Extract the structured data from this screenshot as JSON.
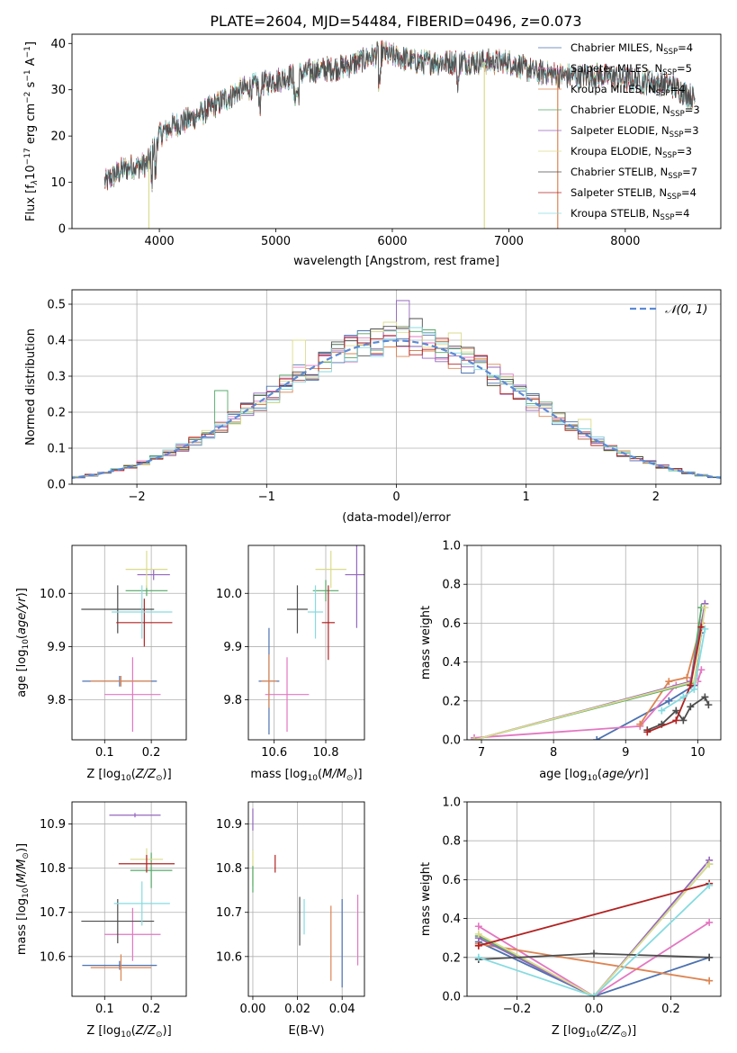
{
  "colors": [
    "#4c72b0",
    "#e377c2",
    "#dd8452",
    "#55a868",
    "#9467bd",
    "#dbdb8d",
    "#4d4d4d",
    "#b22222",
    "#86dbe0",
    "#a0a0a0"
  ],
  "chart_data": [
    {
      "id": "spectrum",
      "type": "line",
      "title": "PLATE=2604, MJD=54484, FIBERID=0496, z=0.073",
      "xlabel": "wavelength [Angstrom, rest frame]",
      "ylabel": "Flux [f",
      "ylabel_parts": [
        "Flux [f",
        "λ",
        "10",
        "−17",
        " erg cm",
        "−2",
        " s",
        "−1",
        " A",
        "−1",
        "]"
      ],
      "xlim": [
        3250,
        8820
      ],
      "ylim": [
        0,
        42
      ],
      "xticks": [
        4000,
        5000,
        6000,
        7000,
        8000
      ],
      "yticks": [
        0,
        10,
        20,
        30,
        40
      ],
      "continuum": {
        "x": [
          3530,
          3700,
          3900,
          3990,
          4100,
          4300,
          4500,
          4700,
          5000,
          5300,
          5600,
          5900,
          6200,
          6500,
          6800,
          7000,
          7200,
          7500,
          7800,
          8100,
          8400,
          8600
        ],
        "y": [
          10,
          13,
          14,
          20,
          22,
          24,
          27,
          30,
          32,
          34,
          35,
          38,
          36,
          36,
          36,
          36,
          34,
          33,
          33,
          32,
          31,
          28
        ]
      },
      "drops": [
        {
          "x": 3910,
          "color": 5
        },
        {
          "x": 6790,
          "color": 5
        },
        {
          "x": 7420,
          "color": 2
        }
      ],
      "legend": [
        {
          "pre": "Chabrier MILES, N",
          "sub": "SSP",
          "post": "=4"
        },
        {
          "pre": "Salpeter MILES, N",
          "sub": "SSP",
          "post": "=5"
        },
        {
          "pre": "Kroupa MILES, N",
          "sub": "SSP",
          "post": "=4"
        },
        {
          "pre": "Chabrier ELODIE, N",
          "sub": "SSP",
          "post": "=3"
        },
        {
          "pre": "Salpeter ELODIE, N",
          "sub": "SSP",
          "post": "=3"
        },
        {
          "pre": "Kroupa ELODIE, N",
          "sub": "SSP",
          "post": "=3"
        },
        {
          "pre": "Chabrier STELIB, N",
          "sub": "SSP",
          "post": "=7"
        },
        {
          "pre": "Salpeter STELIB, N",
          "sub": "SSP",
          "post": "=4"
        },
        {
          "pre": "Kroupa STELIB, N",
          "sub": "SSP",
          "post": "=4"
        }
      ]
    },
    {
      "id": "residuals",
      "type": "histogram",
      "xlabel": "(data-model)/error",
      "ylabel": "Normed distribution",
      "xlim": [
        -2.5,
        2.5
      ],
      "ylim": [
        0,
        0.54
      ],
      "xticks": [
        -2,
        -1,
        0,
        1,
        2
      ],
      "yticks": [
        0.0,
        0.1,
        0.2,
        0.3,
        0.4,
        0.5
      ],
      "bin_width": 0.1,
      "legend": "𝒩(0, 1)",
      "spikes": [
        {
          "x": 0.1,
          "y": 0.51,
          "color": 4
        },
        {
          "x": 0.2,
          "y": 0.46,
          "color": 6
        },
        {
          "x": -0.3,
          "y": 0.41,
          "color": 4
        },
        {
          "x": 0.0,
          "y": 0.45,
          "color": 5
        },
        {
          "x": -0.7,
          "y": 0.4,
          "color": 5
        },
        {
          "x": 0.5,
          "y": 0.42,
          "color": 5
        },
        {
          "x": -1.3,
          "y": 0.26,
          "color": 3
        },
        {
          "x": 1.5,
          "y": 0.18,
          "color": 5
        }
      ]
    },
    {
      "id": "age_vs_Z",
      "type": "errorbar",
      "xlabel": "Z [log",
      "ylabel": "age  [log",
      "xlim": [
        0.03,
        0.275
      ],
      "ylim": [
        9.725,
        10.09
      ],
      "xticks": [
        0.1,
        0.2
      ],
      "yticks": [
        9.8,
        9.9,
        10.0
      ],
      "points": [
        {
          "x": 0.132,
          "xerr": 0.08,
          "y": 9.835,
          "yerr": 0.01,
          "color": 0
        },
        {
          "x": 0.16,
          "xerr": 0.06,
          "y": 9.81,
          "yerr": 0.07,
          "color": 1
        },
        {
          "x": 0.135,
          "xerr": 0.065,
          "y": 9.835,
          "yerr": 0.01,
          "color": 2
        },
        {
          "x": 0.19,
          "xerr": 0.045,
          "y": 10.005,
          "yerr": 0.01,
          "color": 3
        },
        {
          "x": 0.205,
          "xerr": 0.035,
          "y": 10.035,
          "yerr": 0.01,
          "color": 4
        },
        {
          "x": 0.19,
          "xerr": 0.045,
          "y": 10.045,
          "yerr": 0.035,
          "color": 5
        },
        {
          "x": 0.128,
          "xerr": 0.078,
          "y": 9.97,
          "yerr": 0.045,
          "color": 6
        },
        {
          "x": 0.185,
          "xerr": 0.06,
          "y": 9.945,
          "yerr": 0.045,
          "color": 7
        },
        {
          "x": 0.18,
          "xerr": 0.065,
          "y": 9.965,
          "yerr": 0.05,
          "color": 8
        }
      ]
    },
    {
      "id": "age_vs_mass",
      "type": "errorbar",
      "xlabel": "mass [log",
      "ylabel": "",
      "xlim": [
        10.5,
        10.95
      ],
      "ylim": [
        9.725,
        10.09
      ],
      "xticks": [
        10.6,
        10.8
      ],
      "yticks": [
        9.8,
        9.9,
        10.0
      ],
      "points": [
        {
          "x": 10.58,
          "xerr": 0.04,
          "y": 9.835,
          "yerr": 0.1,
          "color": 0
        },
        {
          "x": 10.65,
          "xerr": 0.085,
          "y": 9.81,
          "yerr": 0.07,
          "color": 1
        },
        {
          "x": 10.58,
          "xerr": 0.03,
          "y": 9.835,
          "yerr": 0.05,
          "color": 2
        },
        {
          "x": 10.8,
          "xerr": 0.05,
          "y": 10.005,
          "yerr": 0.02,
          "color": 3
        },
        {
          "x": 10.92,
          "xerr": 0.045,
          "y": 10.035,
          "yerr": 0.1,
          "color": 4
        },
        {
          "x": 10.82,
          "xerr": 0.06,
          "y": 10.045,
          "yerr": 0.035,
          "color": 5
        },
        {
          "x": 10.69,
          "xerr": 0.04,
          "y": 9.97,
          "yerr": 0.045,
          "color": 6
        },
        {
          "x": 10.81,
          "xerr": 0.025,
          "y": 9.945,
          "yerr": 0.07,
          "color": 7
        },
        {
          "x": 10.76,
          "xerr": 0.03,
          "y": 9.965,
          "yerr": 0.05,
          "color": 8
        }
      ]
    },
    {
      "id": "mass_vs_Z",
      "type": "errorbar",
      "xlabel": "Z [log",
      "ylabel": "mass [log",
      "xlim": [
        0.03,
        0.275
      ],
      "ylim": [
        10.51,
        10.95
      ],
      "xticks": [
        0.1,
        0.2
      ],
      "yticks": [
        10.6,
        10.7,
        10.8,
        10.9
      ],
      "points": [
        {
          "x": 0.132,
          "xerr": 0.08,
          "y": 10.58,
          "yerr": 0.01,
          "color": 0
        },
        {
          "x": 0.16,
          "xerr": 0.06,
          "y": 10.65,
          "yerr": 0.06,
          "color": 1
        },
        {
          "x": 0.135,
          "xerr": 0.065,
          "y": 10.575,
          "yerr": 0.03,
          "color": 2
        },
        {
          "x": 0.2,
          "xerr": 0.045,
          "y": 10.795,
          "yerr": 0.04,
          "color": 3
        },
        {
          "x": 0.165,
          "xerr": 0.055,
          "y": 10.92,
          "yerr": 0.005,
          "color": 4
        },
        {
          "x": 0.19,
          "xerr": 0.035,
          "y": 10.82,
          "yerr": 0.025,
          "color": 5
        },
        {
          "x": 0.128,
          "xerr": 0.078,
          "y": 10.68,
          "yerr": 0.05,
          "color": 6
        },
        {
          "x": 0.19,
          "xerr": 0.06,
          "y": 10.81,
          "yerr": 0.02,
          "color": 7
        },
        {
          "x": 0.18,
          "xerr": 0.06,
          "y": 10.72,
          "yerr": 0.05,
          "color": 8
        }
      ]
    },
    {
      "id": "mass_vs_EBV",
      "type": "errorbar",
      "xlabel": "E(B-V)",
      "ylabel": "",
      "xlim": [
        -0.002,
        0.05
      ],
      "ylim": [
        10.51,
        10.95
      ],
      "xticks": [
        0.0,
        0.02,
        0.04
      ],
      "yticks": [
        10.6,
        10.7,
        10.8,
        10.9
      ],
      "points": [
        {
          "x": 0.0,
          "y": 10.91,
          "yerr": 0.025,
          "color": 4
        },
        {
          "x": 0.0,
          "y": 10.8,
          "yerr": 0.04,
          "color": 5
        },
        {
          "x": 0.0,
          "y": 10.775,
          "yerr": 0.03,
          "color": 3
        },
        {
          "x": 0.01,
          "y": 10.81,
          "yerr": 0.02,
          "color": 7
        },
        {
          "x": 0.021,
          "y": 10.68,
          "yerr": 0.055,
          "color": 6
        },
        {
          "x": 0.023,
          "y": 10.69,
          "yerr": 0.04,
          "color": 8
        },
        {
          "x": 0.035,
          "y": 10.63,
          "yerr": 0.085,
          "color": 2
        },
        {
          "x": 0.04,
          "y": 10.63,
          "yerr": 0.1,
          "color": 0
        },
        {
          "x": 0.047,
          "y": 10.66,
          "yerr": 0.08,
          "color": 1
        }
      ]
    },
    {
      "id": "massweight_vs_age",
      "type": "line",
      "xlabel": "age  [log",
      "ylabel": "mass weight",
      "xlim": [
        6.8,
        10.32
      ],
      "ylim": [
        0,
        1
      ],
      "xticks": [
        7,
        8,
        9,
        10
      ],
      "yticks": [
        0.0,
        0.2,
        0.4,
        0.6,
        0.8,
        1.0
      ],
      "series": [
        {
          "color": 0,
          "x": [
            8.6,
            9.6,
            9.95,
            10.05
          ],
          "y": [
            0.0,
            0.2,
            0.28,
            0.55
          ]
        },
        {
          "color": 1,
          "x": [
            6.9,
            9.2,
            9.7,
            10.0,
            10.05
          ],
          "y": [
            0.01,
            0.07,
            0.28,
            0.3,
            0.36
          ]
        },
        {
          "color": 2,
          "x": [
            9.2,
            9.6,
            9.85,
            10.05
          ],
          "y": [
            0.08,
            0.3,
            0.32,
            0.6
          ]
        },
        {
          "color": 3,
          "x": [
            6.9,
            9.9,
            10.05
          ],
          "y": [
            0.0,
            0.29,
            0.68
          ]
        },
        {
          "color": 4,
          "x": [
            6.9,
            9.9,
            10.1
          ],
          "y": [
            0.0,
            0.3,
            0.7
          ]
        },
        {
          "color": 5,
          "x": [
            6.9,
            9.95,
            10.1
          ],
          "y": [
            0.0,
            0.3,
            0.68
          ]
        },
        {
          "color": 6,
          "x": [
            9.3,
            9.5,
            9.7,
            9.8,
            9.9,
            10.1,
            10.15
          ],
          "y": [
            0.05,
            0.08,
            0.15,
            0.1,
            0.17,
            0.22,
            0.18
          ]
        },
        {
          "color": 7,
          "x": [
            9.3,
            9.7,
            9.9,
            10.05
          ],
          "y": [
            0.04,
            0.1,
            0.28,
            0.58
          ]
        },
        {
          "color": 8,
          "x": [
            9.5,
            9.8,
            9.95,
            10.1
          ],
          "y": [
            0.15,
            0.22,
            0.26,
            0.57
          ]
        }
      ]
    },
    {
      "id": "massweight_vs_Z",
      "type": "line",
      "xlabel": "Z [log",
      "ylabel": "mass weight",
      "xlim": [
        -0.33,
        0.33
      ],
      "ylim": [
        0,
        1
      ],
      "xticks": [
        -0.2,
        0.0,
        0.2
      ],
      "yticks": [
        0.0,
        0.2,
        0.4,
        0.6,
        0.8,
        1.0
      ],
      "series": [
        {
          "color": 0,
          "x": [
            -0.3,
            0.0,
            0.3
          ],
          "y": [
            0.28,
            0.0,
            0.2
          ]
        },
        {
          "color": 1,
          "x": [
            -0.3,
            0.0,
            0.3
          ],
          "y": [
            0.36,
            0.0,
            0.38
          ]
        },
        {
          "color": 2,
          "x": [
            -0.3,
            0.3
          ],
          "y": [
            0.27,
            0.08
          ]
        },
        {
          "color": 3,
          "x": [
            -0.3,
            0.0,
            0.3
          ],
          "y": [
            0.31,
            0.0,
            0.68
          ]
        },
        {
          "color": 4,
          "x": [
            -0.3,
            0.0,
            0.3
          ],
          "y": [
            0.3,
            0.0,
            0.7
          ]
        },
        {
          "color": 5,
          "x": [
            -0.3,
            0.0,
            0.3
          ],
          "y": [
            0.32,
            0.0,
            0.68
          ]
        },
        {
          "color": 6,
          "x": [
            -0.3,
            0.0,
            0.3
          ],
          "y": [
            0.19,
            0.22,
            0.2
          ]
        },
        {
          "color": 7,
          "x": [
            -0.3,
            0.3
          ],
          "y": [
            0.26,
            0.58
          ]
        },
        {
          "color": 8,
          "x": [
            -0.3,
            0.0,
            0.3
          ],
          "y": [
            0.2,
            0.0,
            0.57
          ]
        }
      ]
    }
  ]
}
